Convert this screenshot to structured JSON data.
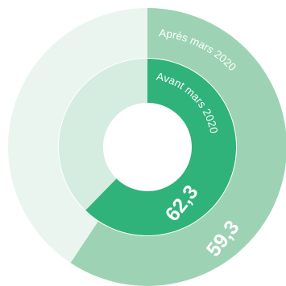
{
  "chart_data": {
    "type": "pie",
    "series": [
      {
        "ring": "outer",
        "name": "Après mars 2020",
        "value": 59.3,
        "value_label": "59,3",
        "color": "#9dd3b4",
        "remainder_color": "#ebf5ef"
      },
      {
        "ring": "inner",
        "name": "Avant mars 2020",
        "value": 62.3,
        "value_label": "62,3",
        "color": "#2fb37a",
        "remainder_color": "#d5ece0"
      }
    ],
    "total": 100
  }
}
